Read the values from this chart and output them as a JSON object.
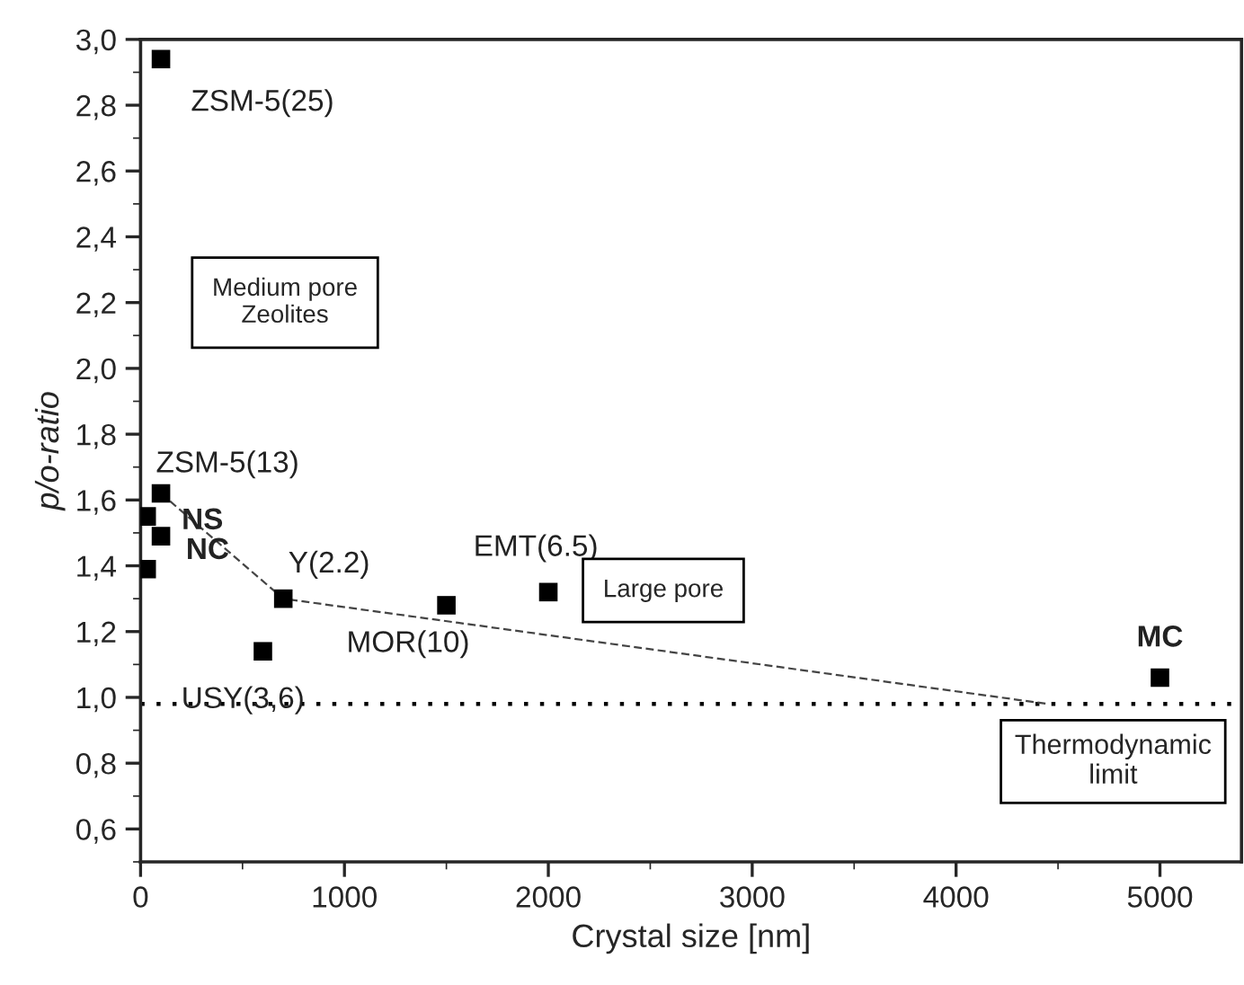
{
  "chart_data": {
    "type": "scatter",
    "xlabel": "Crystal size [nm]",
    "ylabel": "p/o-ratio",
    "series": [
      {
        "color": "#000000",
        "marker": "square",
        "x": [
          100,
          100,
          30,
          100,
          30,
          700,
          600,
          1500,
          2000,
          5000
        ],
        "values": [
          2.94,
          1.62,
          1.55,
          1.49,
          1.39,
          1.3,
          1.14,
          1.28,
          1.32,
          1.06
        ]
      },
      {
        "type": "line",
        "color": "#444444",
        "line_style": "dashed",
        "marker": "none",
        "x": [
          100,
          700,
          4450
        ],
        "values": [
          1.62,
          1.3,
          0.98
        ]
      }
    ],
    "annotations": [
      {
        "text": "ZSM-5(25)",
        "x": 100,
        "y": 2.94
      },
      {
        "text": "ZSM-5(13)",
        "x": 100,
        "y": 1.62
      },
      {
        "text": "NS",
        "x": 30,
        "y": 1.55
      },
      {
        "text": "NC",
        "x": 100,
        "y": 1.49
      },
      {
        "text": "Y(2.2)",
        "x": 700,
        "y": 1.3
      },
      {
        "text": "USY(3,6)",
        "x": 600,
        "y": 1.14
      },
      {
        "text": "MOR(10)",
        "x": 1500,
        "y": 1.28
      },
      {
        "text": "EMT(6.5)",
        "x": 2000,
        "y": 1.32
      },
      {
        "text": "MC",
        "x": 5000,
        "y": 1.06
      },
      "Medium pore\nZeolites",
      "Large pore"
    ],
    "ref_lines": [
      {
        "axis": "y",
        "value": 0.98,
        "label": "Thermodynamic\nlimit",
        "color": "#000000",
        "line_style": "dotted"
      }
    ],
    "xlim": [
      0,
      5400
    ],
    "ylim": [
      0.5,
      3.0
    ],
    "xticks": [
      0,
      1000,
      2000,
      3000,
      4000,
      5000
    ],
    "yticks": [
      {
        "value": 0.6,
        "label": "0,6"
      },
      {
        "value": 0.8,
        "label": "0,8"
      },
      {
        "value": 1.0,
        "label": "1,0"
      },
      {
        "value": 1.2,
        "label": "1,2"
      },
      {
        "value": 1.4,
        "label": "1,4"
      },
      {
        "value": 1.6,
        "label": "1,6"
      },
      {
        "value": 1.8,
        "label": "1,8"
      },
      {
        "value": 2.0,
        "label": "2,0"
      },
      {
        "value": 2.2,
        "label": "2,2"
      },
      {
        "value": 2.4,
        "label": "2,4"
      },
      {
        "value": 2.6,
        "label": "2,6"
      },
      {
        "value": 2.8,
        "label": "2,8"
      },
      {
        "value": 3.0,
        "label": "3,0"
      }
    ],
    "grid": false,
    "legend": false
  }
}
